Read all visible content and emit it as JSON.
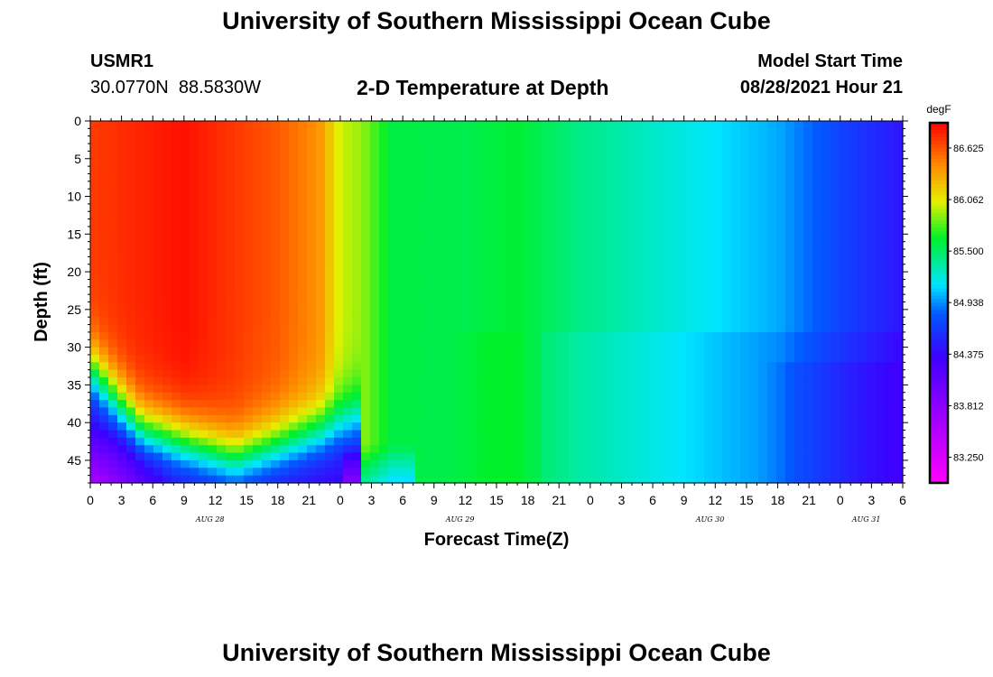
{
  "header": {
    "title_top": "University of Southern Mississippi Ocean Cube",
    "title_bottom": "University of Southern Mississippi Ocean Cube",
    "station_id": "USMR1",
    "station_coords": "30.0770N  88.5830W",
    "plot_title": "2-D Temperature at Depth",
    "model_start_label": "Model Start Time",
    "model_start_value": "08/28/2021 Hour 21"
  },
  "chart_data": {
    "type": "heatmap",
    "title": "2-D Temperature at Depth",
    "xlabel": "Forecast Time(Z)",
    "ylabel": "Depth (ft)",
    "x_range_hours": [
      0,
      78
    ],
    "y_range": [
      0,
      48
    ],
    "y_inverted": true,
    "x_tick_labels": [
      "0",
      "3",
      "6",
      "9",
      "12",
      "15",
      "18",
      "21",
      "0",
      "3",
      "6",
      "9",
      "12",
      "15",
      "18",
      "21",
      "0",
      "3",
      "6",
      "9",
      "12",
      "15",
      "18",
      "21",
      "0",
      "3",
      "6"
    ],
    "y_tick_labels": [
      "0",
      "5",
      "10",
      "15",
      "20",
      "25",
      "30",
      "35",
      "40",
      "45"
    ],
    "y_tick_values": [
      0,
      5,
      10,
      15,
      20,
      25,
      30,
      35,
      40,
      45
    ],
    "date_labels": [
      {
        "text": "AUG 28",
        "hour": 11.5
      },
      {
        "text": "AUG 29",
        "hour": 35.5
      },
      {
        "text": "AUG 30",
        "hour": 59.5
      },
      {
        "text": "AUG 31",
        "hour": 74.5
      }
    ],
    "colorbar": {
      "unit": "degF",
      "min": 82.97,
      "max": 86.9,
      "labels": [
        "86.625",
        "86.062",
        "85.500",
        "84.938",
        "84.375",
        "83.812",
        "83.250"
      ],
      "label_values": [
        86.625,
        86.062,
        85.5,
        84.938,
        84.375,
        83.812,
        83.25
      ]
    },
    "surface_temperature_profile": [
      {
        "hour": 0,
        "value": 86.7
      },
      {
        "hour": 9,
        "value": 86.85
      },
      {
        "hour": 18,
        "value": 86.6
      },
      {
        "hour": 22,
        "value": 86.4
      },
      {
        "hour": 24,
        "value": 86.0
      },
      {
        "hour": 26,
        "value": 85.9
      },
      {
        "hour": 29,
        "value": 85.58
      },
      {
        "hour": 36,
        "value": 85.55
      },
      {
        "hour": 41,
        "value": 85.62
      },
      {
        "hour": 47,
        "value": 85.42
      },
      {
        "hour": 56,
        "value": 85.22
      },
      {
        "hour": 66,
        "value": 85.0
      },
      {
        "hour": 72,
        "value": 84.7
      },
      {
        "hour": 78,
        "value": 84.45
      }
    ],
    "grid": false
  }
}
